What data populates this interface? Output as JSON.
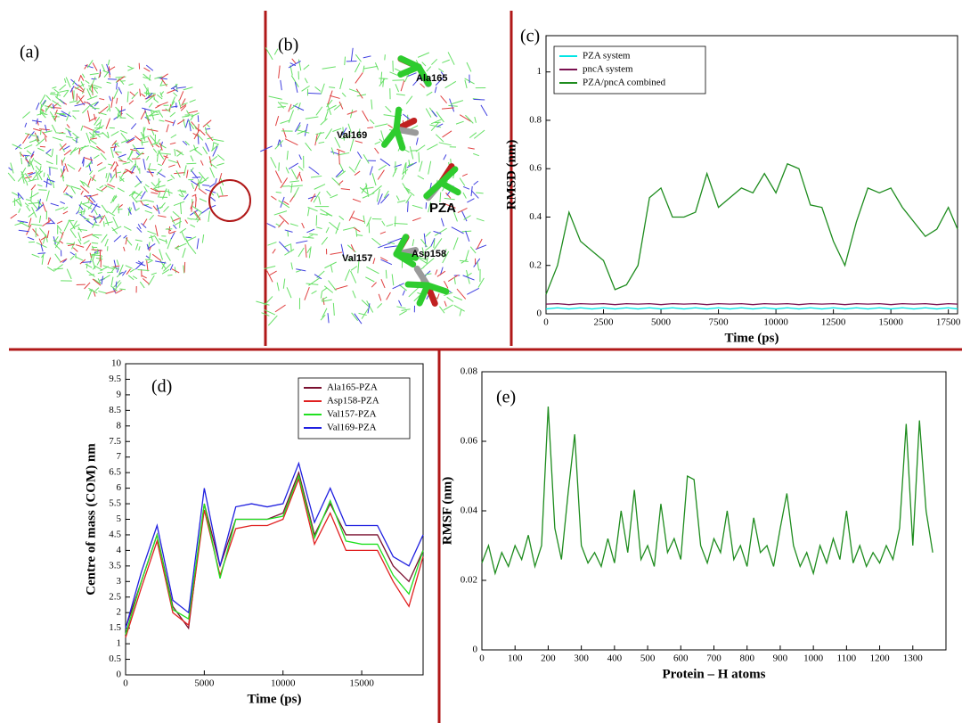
{
  "images": [
    {
      "label": "(a)"
    },
    {
      "label": "(b)",
      "annotations": [
        "Ala165",
        "Val169",
        "PZA",
        "Val157",
        "Asp158"
      ]
    }
  ],
  "chart_data": [
    {
      "type": "line",
      "panel_label": "(c)",
      "x_label": "Time (ps)",
      "y_label": "RMSD (nm)",
      "xlim": [
        0,
        17900
      ],
      "ylim": [
        0,
        1.15
      ],
      "xticks": [
        0,
        2500,
        5000,
        7500,
        10000,
        12500,
        15000,
        17500
      ],
      "yticks": [
        0,
        0.2,
        0.4,
        0.6,
        0.8,
        1
      ],
      "legend": "upper left",
      "x": [
        0,
        500,
        1000,
        1500,
        2000,
        2500,
        3000,
        3500,
        4000,
        4500,
        5000,
        5500,
        6000,
        6500,
        7000,
        7500,
        8000,
        8500,
        9000,
        9500,
        10000,
        10500,
        11000,
        11500,
        12000,
        12500,
        13000,
        13500,
        14000,
        14500,
        15000,
        15500,
        16000,
        16500,
        17000,
        17500,
        17900
      ],
      "series": [
        {
          "name": "PZA system",
          "color": "#00e5e5",
          "values": [
            0.02,
            0.025,
            0.02,
            0.025,
            0.02,
            0.025,
            0.02,
            0.025,
            0.02,
            0.025,
            0.02,
            0.025,
            0.02,
            0.025,
            0.02,
            0.025,
            0.02,
            0.025,
            0.02,
            0.025,
            0.02,
            0.025,
            0.02,
            0.025,
            0.02,
            0.025,
            0.02,
            0.025,
            0.02,
            0.025,
            0.02,
            0.025,
            0.02,
            0.025,
            0.02,
            0.025,
            0.02
          ]
        },
        {
          "name": "pncA system",
          "color": "#7a1050",
          "values": [
            0.04,
            0.042,
            0.038,
            0.042,
            0.04,
            0.042,
            0.038,
            0.042,
            0.04,
            0.042,
            0.038,
            0.042,
            0.04,
            0.042,
            0.038,
            0.042,
            0.04,
            0.042,
            0.038,
            0.042,
            0.04,
            0.042,
            0.038,
            0.042,
            0.04,
            0.042,
            0.038,
            0.042,
            0.04,
            0.042,
            0.038,
            0.042,
            0.04,
            0.042,
            0.038,
            0.042,
            0.04
          ]
        },
        {
          "name": "PZA/pncA combined",
          "color": "#1e8c1e",
          "values": [
            0.08,
            0.2,
            0.42,
            0.3,
            0.26,
            0.22,
            0.1,
            0.12,
            0.2,
            0.48,
            0.52,
            0.4,
            0.4,
            0.42,
            0.58,
            0.44,
            0.48,
            0.52,
            0.5,
            0.58,
            0.5,
            0.62,
            0.6,
            0.45,
            0.44,
            0.3,
            0.2,
            0.38,
            0.52,
            0.5,
            0.52,
            0.44,
            0.38,
            0.32,
            0.35,
            0.44,
            0.35
          ]
        }
      ]
    },
    {
      "type": "line",
      "panel_label": "(d)",
      "x_label": "Time (ps)",
      "y_label": "Centre of mass (COM) nm",
      "xlim": [
        0,
        18900
      ],
      "ylim": [
        0,
        10
      ],
      "xticks": [
        0,
        5000,
        10000,
        15000
      ],
      "yticks": [
        0,
        0.5,
        1,
        1.5,
        2,
        2.5,
        3,
        3.5,
        4,
        4.5,
        5,
        5.5,
        6,
        6.5,
        7,
        7.5,
        8,
        8.5,
        9,
        9.5,
        10
      ],
      "legend": "upper right",
      "x": [
        0,
        1000,
        2000,
        3000,
        4000,
        5000,
        6000,
        7000,
        8000,
        9000,
        10000,
        11000,
        12000,
        13000,
        14000,
        15000,
        16000,
        17000,
        18000,
        18900
      ],
      "series": [
        {
          "name": "Ala165-PZA",
          "color": "#7a1030",
          "values": [
            1.5,
            3,
            4.5,
            2.2,
            1.5,
            5.5,
            3.5,
            5,
            5,
            5,
            5.2,
            6.5,
            4.5,
            5.5,
            4.5,
            4.5,
            4.5,
            3.5,
            3,
            4
          ]
        },
        {
          "name": "Asp158-PZA",
          "color": "#e02020",
          "values": [
            1.2,
            2.8,
            4.3,
            2,
            1.6,
            5.3,
            3.2,
            4.7,
            4.8,
            4.8,
            5,
            6.3,
            4.2,
            5.2,
            4,
            4,
            4,
            3,
            2.2,
            3.8
          ]
        },
        {
          "name": "Val157-PZA",
          "color": "#20e020",
          "values": [
            1.3,
            3,
            4.5,
            2.1,
            1.8,
            5.5,
            3.1,
            5,
            5,
            5,
            5.1,
            6.4,
            4.4,
            5.6,
            4.3,
            4.2,
            4.2,
            3.2,
            2.6,
            4
          ]
        },
        {
          "name": "Val169-PZA",
          "color": "#2020e0",
          "values": [
            1.5,
            3.3,
            4.8,
            2.4,
            2,
            6,
            3.5,
            5.4,
            5.5,
            5.4,
            5.5,
            6.8,
            4.9,
            6,
            4.8,
            4.8,
            4.8,
            3.8,
            3.5,
            4.5
          ]
        }
      ]
    },
    {
      "type": "line",
      "panel_label": "(e)",
      "x_label": "Protein – H atoms",
      "y_label": "RMSF (nm)",
      "xlim": [
        0,
        1400
      ],
      "ylim": [
        0,
        0.08
      ],
      "xticks": [
        0,
        100,
        200,
        300,
        400,
        500,
        600,
        700,
        800,
        900,
        1000,
        1100,
        1200,
        1300
      ],
      "yticks": [
        0,
        0.02,
        0.04,
        0.06,
        0.08
      ],
      "x": [
        0,
        20,
        40,
        60,
        80,
        100,
        120,
        140,
        160,
        180,
        200,
        220,
        240,
        260,
        280,
        300,
        320,
        340,
        360,
        380,
        400,
        420,
        440,
        460,
        480,
        500,
        520,
        540,
        560,
        580,
        600,
        620,
        640,
        660,
        680,
        700,
        720,
        740,
        760,
        780,
        800,
        820,
        840,
        860,
        880,
        900,
        920,
        940,
        960,
        980,
        1000,
        1020,
        1040,
        1060,
        1080,
        1100,
        1120,
        1140,
        1160,
        1180,
        1200,
        1220,
        1240,
        1260,
        1280,
        1300,
        1320,
        1340,
        1360
      ],
      "series": [
        {
          "color": "#1e8c1e",
          "values": [
            0.025,
            0.03,
            0.022,
            0.028,
            0.024,
            0.03,
            0.026,
            0.033,
            0.024,
            0.03,
            0.07,
            0.035,
            0.026,
            0.045,
            0.062,
            0.03,
            0.025,
            0.028,
            0.024,
            0.032,
            0.025,
            0.04,
            0.028,
            0.046,
            0.026,
            0.03,
            0.024,
            0.042,
            0.028,
            0.032,
            0.026,
            0.05,
            0.049,
            0.03,
            0.025,
            0.032,
            0.028,
            0.04,
            0.026,
            0.03,
            0.024,
            0.038,
            0.028,
            0.03,
            0.024,
            0.035,
            0.045,
            0.03,
            0.024,
            0.028,
            0.022,
            0.03,
            0.025,
            0.032,
            0.026,
            0.04,
            0.025,
            0.03,
            0.024,
            0.028,
            0.025,
            0.03,
            0.026,
            0.035,
            0.065,
            0.03,
            0.066,
            0.04,
            0.028
          ]
        }
      ]
    }
  ]
}
